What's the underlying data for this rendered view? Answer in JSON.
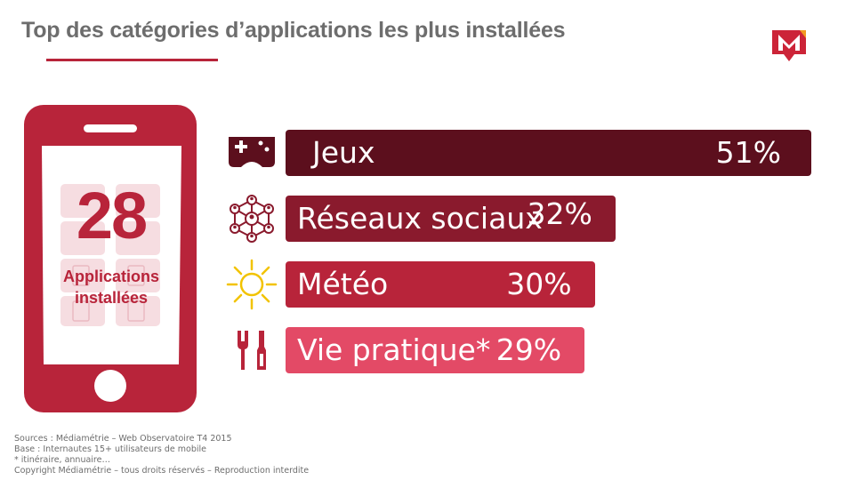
{
  "title": "Top des catégories d’applications les plus installées",
  "colors": {
    "accent": "#b8243a",
    "title_text": "#6d6d6d",
    "bar_1": "#5c0f1d",
    "bar_2": "#8a1a2d",
    "bar_3": "#b8243a",
    "bar_4": "#e34a66",
    "sun_icon": "#f2c300"
  },
  "phone": {
    "count": "28",
    "label_line1": "Applications",
    "label_line2": "installées"
  },
  "chart_data": {
    "type": "bar",
    "orientation": "horizontal",
    "categories": [
      "Jeux",
      "Réseaux sociaux",
      "Météo",
      "Vie pratique*"
    ],
    "values": [
      51,
      32,
      30,
      29
    ],
    "value_labels": [
      "51%",
      "32%",
      "30%",
      "29%"
    ],
    "icons": [
      "gamepad-icon",
      "social-network-icon",
      "sun-icon",
      "tools-icon"
    ],
    "xlim": [
      0,
      51
    ],
    "grid": false,
    "legend": "none"
  },
  "sources": [
    "Sources : Médiamétrie – Web Observatoire T4 2015",
    "Base : Internautes 15+ utilisateurs de mobile",
    "* itinéraire, annuaire…",
    "Copyright Médiamétrie – tous droits réservés – Reproduction interdite"
  ]
}
